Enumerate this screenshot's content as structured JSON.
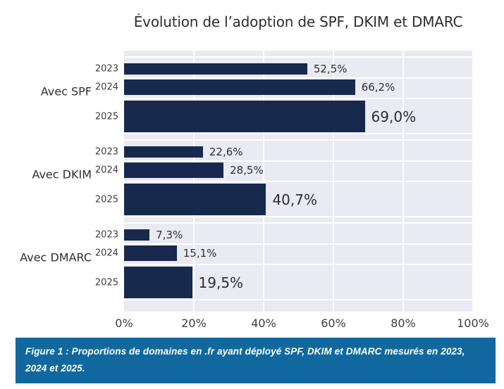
{
  "chart_data": {
    "type": "bar",
    "orientation": "horizontal",
    "title": "Évolution de l’adoption de SPF, DKIM et DMARC",
    "xlabel": "",
    "ylabel": "",
    "xlim": [
      0,
      100
    ],
    "x_ticks": [
      "0%",
      "20%",
      "40%",
      "60%",
      "80%",
      "100%"
    ],
    "grid": "on",
    "legend": "none",
    "colors": {
      "bar": "#17294d",
      "plot_background": "#e9eaf2",
      "gridline": "#ffffff",
      "text": "#2e2e2e"
    },
    "groups": [
      {
        "label": "Avec SPF",
        "bars": [
          {
            "year": "2023",
            "value": 52.5,
            "label": "52,5%"
          },
          {
            "year": "2024",
            "value": 66.2,
            "label": "66,2%"
          },
          {
            "year": "2025",
            "value": 69.0,
            "label": "69,0%"
          }
        ]
      },
      {
        "label": "Avec DKIM",
        "bars": [
          {
            "year": "2023",
            "value": 22.6,
            "label": "22,6%"
          },
          {
            "year": "2024",
            "value": 28.5,
            "label": "28,5%"
          },
          {
            "year": "2025",
            "value": 40.7,
            "label": "40,7%"
          }
        ]
      },
      {
        "label": "Avec DMARC",
        "bars": [
          {
            "year": "2023",
            "value": 7.3,
            "label": "7,3%"
          },
          {
            "year": "2024",
            "value": 15.1,
            "label": "15,1%"
          },
          {
            "year": "2025",
            "value": 19.5,
            "label": "19,5%"
          }
        ]
      }
    ]
  },
  "caption": {
    "text": "Figure 1 : Proportions de domaines en .fr ayant déployé SPF, DKIM et DMARC mesurés en 2023, 2024 et 2025.",
    "background": "#11689e",
    "text_color": "#ffffff"
  }
}
